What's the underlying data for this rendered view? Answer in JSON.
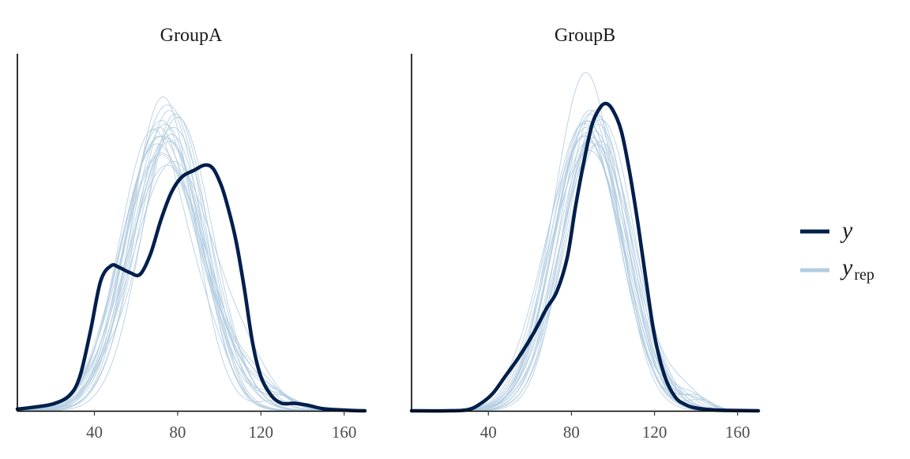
{
  "chart_data": {
    "type": "line",
    "chart_kind": "posterior predictive density overlay",
    "legend": {
      "position": "right",
      "y_label": "y",
      "yrep_label": "y",
      "yrep_subscript": "rep",
      "y_color": "#011f4b",
      "yrep_color": "#b3cde0"
    },
    "x_ticks": [
      40,
      80,
      120,
      160
    ],
    "xlim": [
      3,
      170
    ],
    "ylim": [
      0,
      1.0
    ],
    "y_axis_ticks": "none",
    "grid": false,
    "panels": [
      {
        "title": "GroupA",
        "y": {
          "x": [
            3,
            10,
            20,
            28,
            33,
            38,
            43,
            48,
            52,
            57,
            62,
            67,
            72,
            77,
            82,
            88,
            93,
            97,
            101,
            104,
            108,
            112,
            116,
            120,
            125,
            130,
            136,
            142,
            150,
            160,
            170
          ],
          "density": [
            0.005,
            0.01,
            0.02,
            0.045,
            0.1,
            0.23,
            0.38,
            0.425,
            0.42,
            0.405,
            0.4,
            0.46,
            0.56,
            0.64,
            0.685,
            0.705,
            0.72,
            0.71,
            0.66,
            0.6,
            0.5,
            0.36,
            0.2,
            0.1,
            0.045,
            0.022,
            0.022,
            0.017,
            0.006,
            0.002,
            0.0
          ]
        },
        "yrep": [
          {
            "mean": 74,
            "sd": 17,
            "peak": 0.84,
            "mean2": 115,
            "sd2": 12,
            "peak2": 0.04
          },
          {
            "mean": 71,
            "sd": 18,
            "peak": 0.8,
            "mean2": 100,
            "sd2": 12,
            "peak2": 0.09
          },
          {
            "mean": 76,
            "sd": 16,
            "peak": 0.88,
            "mean2": 125,
            "sd2": 10,
            "peak2": 0.05
          },
          {
            "mean": 69,
            "sd": 17,
            "peak": 0.77,
            "mean2": 92,
            "sd2": 10,
            "peak2": 0.15
          },
          {
            "mean": 78,
            "sd": 18,
            "peak": 0.83,
            "mean2": 55,
            "sd2": 8,
            "peak2": 0.05
          },
          {
            "mean": 72,
            "sd": 19,
            "peak": 0.75,
            "mean2": 112,
            "sd2": 12,
            "peak2": 0.08
          },
          {
            "mean": 73,
            "sd": 15,
            "peak": 0.92,
            "mean2": 128,
            "sd2": 9,
            "peak2": 0.03
          },
          {
            "mean": 80,
            "sd": 17,
            "peak": 0.86,
            "mean2": 45,
            "sd2": 8,
            "peak2": 0.07
          },
          {
            "mean": 75,
            "sd": 20,
            "peak": 0.72,
            "mean2": 120,
            "sd2": 10,
            "peak2": 0.06
          },
          {
            "mean": 68,
            "sd": 16,
            "peak": 0.82,
            "mean2": 96,
            "sd2": 11,
            "peak2": 0.12
          },
          {
            "mean": 77,
            "sd": 17,
            "peak": 0.81,
            "mean2": 118,
            "sd2": 12,
            "peak2": 0.07
          },
          {
            "mean": 70,
            "sd": 18,
            "peak": 0.78,
            "mean2": 88,
            "sd2": 9,
            "peak2": 0.14
          },
          {
            "mean": 79,
            "sd": 16,
            "peak": 0.87,
            "mean2": 130,
            "sd2": 9,
            "peak2": 0.04
          },
          {
            "mean": 74,
            "sd": 19,
            "peak": 0.74,
            "mean2": 60,
            "sd2": 8,
            "peak2": 0.06
          },
          {
            "mean": 72,
            "sd": 17,
            "peak": 0.85,
            "mean2": 105,
            "sd2": 11,
            "peak2": 0.1
          },
          {
            "mean": 76,
            "sd": 18,
            "peak": 0.79,
            "mean2": 124,
            "sd2": 11,
            "peak2": 0.05
          },
          {
            "mean": 71,
            "sd": 16,
            "peak": 0.83,
            "mean2": 98,
            "sd2": 9,
            "peak2": 0.11
          },
          {
            "mean": 78,
            "sd": 20,
            "peak": 0.73,
            "mean2": 114,
            "sd2": 12,
            "peak2": 0.08
          },
          {
            "mean": 73,
            "sd": 17,
            "peak": 0.86,
            "mean2": 90,
            "sd2": 10,
            "peak2": 0.13
          },
          {
            "mean": 75,
            "sd": 18,
            "peak": 0.8,
            "mean2": 122,
            "sd2": 12,
            "peak2": 0.06
          }
        ]
      },
      {
        "title": "GroupB",
        "y": {
          "x": [
            3,
            20,
            30,
            36,
            42,
            48,
            55,
            62,
            68,
            73,
            78,
            82,
            86,
            90,
            94,
            97,
            100,
            104,
            108,
            112,
            116,
            120,
            125,
            130,
            135,
            140,
            150,
            160,
            170
          ],
          "density": [
            0.0,
            0.0,
            0.003,
            0.02,
            0.05,
            0.1,
            0.16,
            0.23,
            0.3,
            0.35,
            0.45,
            0.6,
            0.73,
            0.84,
            0.89,
            0.9,
            0.88,
            0.82,
            0.7,
            0.55,
            0.38,
            0.22,
            0.1,
            0.04,
            0.018,
            0.008,
            0.002,
            0.001,
            0.0
          ]
        },
        "yrep": [
          {
            "mean": 90,
            "sd": 17,
            "peak": 0.8,
            "mean2": 140,
            "sd2": 7,
            "peak2": 0.03
          },
          {
            "mean": 88,
            "sd": 16,
            "peak": 0.86,
            "mean2": 105,
            "sd2": 10,
            "peak2": 0.08
          },
          {
            "mean": 92,
            "sd": 18,
            "peak": 0.78,
            "mean2": 135,
            "sd2": 8,
            "peak2": 0.04
          },
          {
            "mean": 87,
            "sd": 15,
            "peak": 0.99,
            "mean2": 65,
            "sd2": 8,
            "peak2": 0.04
          },
          {
            "mean": 85,
            "sd": 17,
            "peak": 0.82,
            "mean2": 100,
            "sd2": 9,
            "peak2": 0.1
          },
          {
            "mean": 93,
            "sd": 16,
            "peak": 0.84,
            "mean2": 138,
            "sd2": 7,
            "peak2": 0.04
          },
          {
            "mean": 89,
            "sd": 18,
            "peak": 0.76,
            "mean2": 70,
            "sd2": 8,
            "peak2": 0.05
          },
          {
            "mean": 91,
            "sd": 15,
            "peak": 0.88,
            "mean2": 130,
            "sd2": 9,
            "peak2": 0.05
          },
          {
            "mean": 86,
            "sd": 17,
            "peak": 0.8,
            "mean2": 110,
            "sd2": 10,
            "peak2": 0.07
          },
          {
            "mean": 94,
            "sd": 17,
            "peak": 0.79,
            "mean2": 60,
            "sd2": 9,
            "peak2": 0.03
          },
          {
            "mean": 88,
            "sd": 16,
            "peak": 0.85,
            "mean2": 142,
            "sd2": 7,
            "peak2": 0.03
          },
          {
            "mean": 90,
            "sd": 18,
            "peak": 0.77,
            "mean2": 80,
            "sd2": 8,
            "peak2": 0.08
          },
          {
            "mean": 87,
            "sd": 16,
            "peak": 0.83,
            "mean2": 128,
            "sd2": 8,
            "peak2": 0.05
          },
          {
            "mean": 92,
            "sd": 17,
            "peak": 0.81,
            "mean2": 104,
            "sd2": 9,
            "peak2": 0.09
          },
          {
            "mean": 89,
            "sd": 15,
            "peak": 0.87,
            "mean2": 136,
            "sd2": 8,
            "peak2": 0.04
          },
          {
            "mean": 84,
            "sd": 18,
            "peak": 0.75,
            "mean2": 96,
            "sd2": 10,
            "peak2": 0.1
          },
          {
            "mean": 91,
            "sd": 16,
            "peak": 0.82,
            "mean2": 120,
            "sd2": 9,
            "peak2": 0.06
          },
          {
            "mean": 88,
            "sd": 17,
            "peak": 0.79,
            "mean2": 140,
            "sd2": 7,
            "peak2": 0.04
          },
          {
            "mean": 93,
            "sd": 15,
            "peak": 0.86,
            "mean2": 75,
            "sd2": 8,
            "peak2": 0.05
          },
          {
            "mean": 86,
            "sd": 16,
            "peak": 0.84,
            "mean2": 112,
            "sd2": 10,
            "peak2": 0.07
          }
        ]
      }
    ]
  }
}
